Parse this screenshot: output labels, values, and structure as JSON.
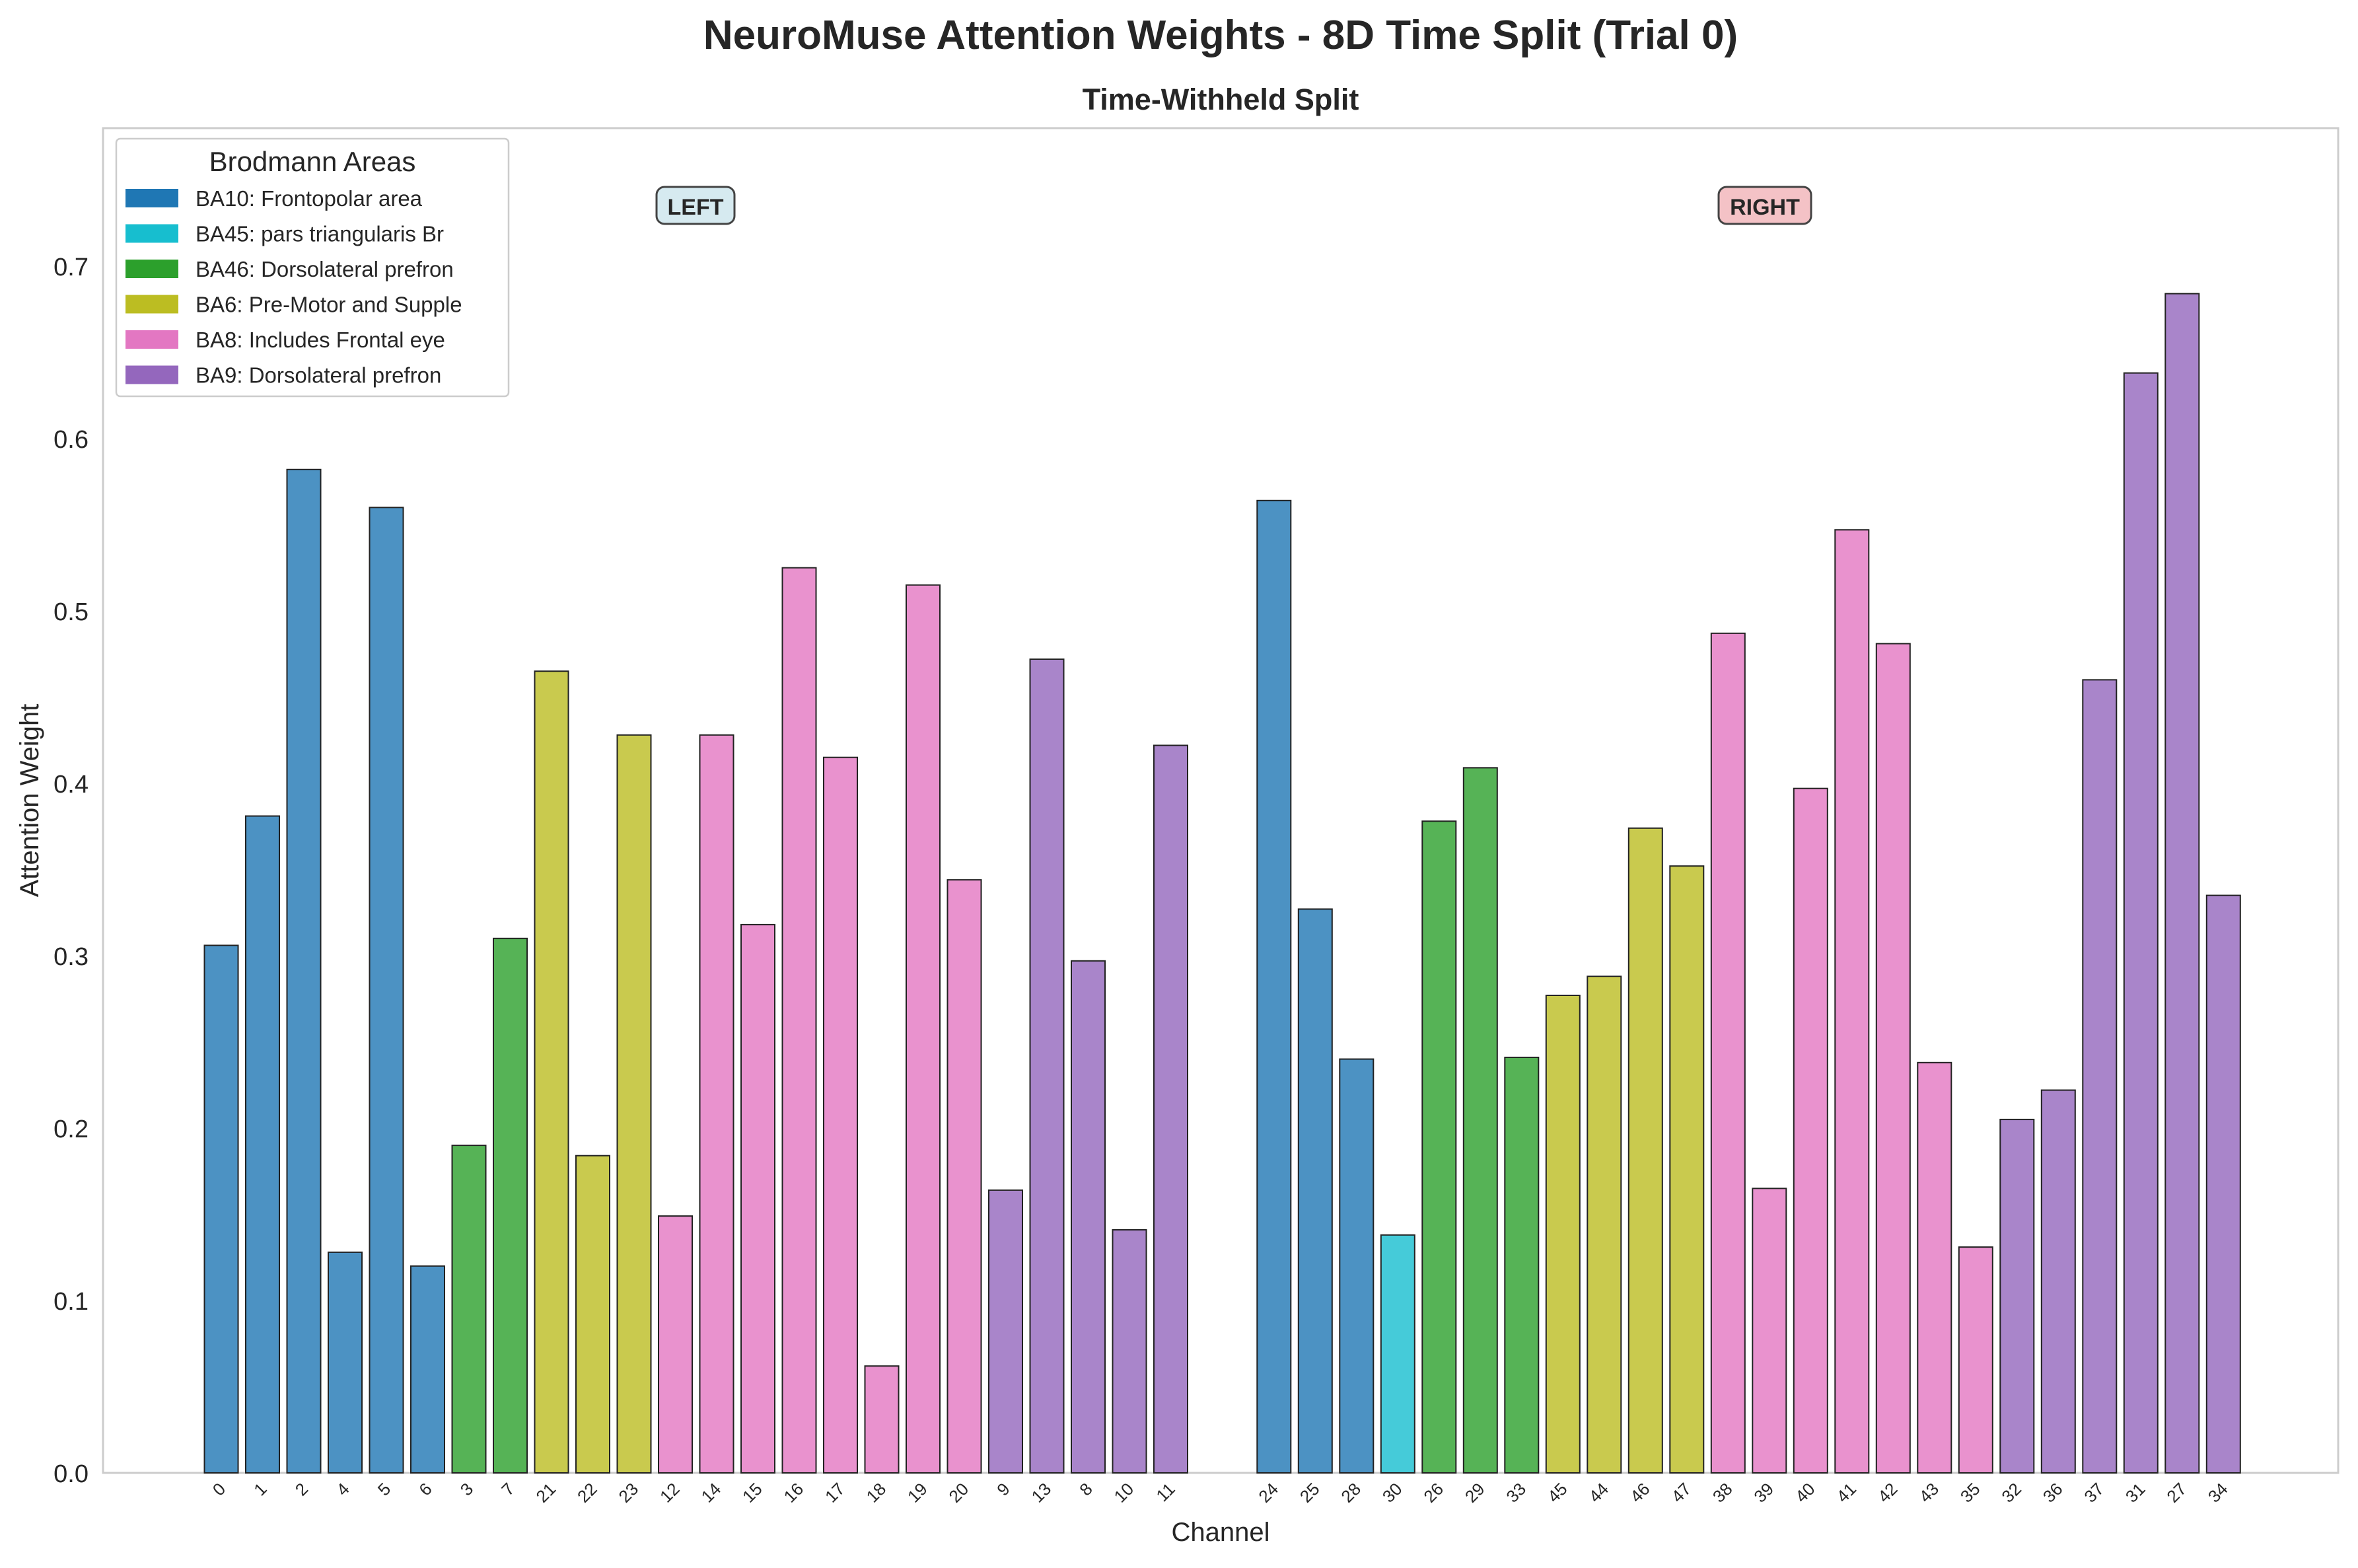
{
  "figure": {
    "title": "NeuroMuse Attention Weights - 8D Time Split (Trial 0)",
    "subtitle": "Time-Withheld Split",
    "xlabel": "Channel",
    "ylabel": "Attention Weight"
  },
  "annotations": {
    "left": "LEFT",
    "right": "RIGHT"
  },
  "legend": {
    "title": "Brodmann Areas",
    "items": [
      {
        "label": "BA10: Frontopolar area",
        "color": "#1f77b4"
      },
      {
        "label": "BA45: pars triangularis Br",
        "color": "#17becf"
      },
      {
        "label": "BA46: Dorsolateral prefron",
        "color": "#2ca02c"
      },
      {
        "label": "BA6: Pre-Motor and Supple",
        "color": "#bcbd22"
      },
      {
        "label": "BA8: Includes Frontal eye",
        "color": "#e377c2"
      },
      {
        "label": "BA9: Dorsolateral prefron",
        "color": "#9467bd"
      }
    ]
  },
  "chart_data": {
    "type": "bar",
    "title": "Time-Withheld Split",
    "xlabel": "Channel",
    "ylabel": "Attention Weight",
    "ylim": [
      0,
      0.78
    ],
    "yticks": [
      "0.0",
      "0.1",
      "0.2",
      "0.3",
      "0.4",
      "0.5",
      "0.6",
      "0.7"
    ],
    "grid": false,
    "legend_position": "top-left",
    "groups": [
      {
        "label": "LEFT",
        "bars": [
          {
            "channel": "0",
            "value": 0.306,
            "area": "BA10"
          },
          {
            "channel": "1",
            "value": 0.381,
            "area": "BA10"
          },
          {
            "channel": "2",
            "value": 0.582,
            "area": "BA10"
          },
          {
            "channel": "4",
            "value": 0.128,
            "area": "BA10"
          },
          {
            "channel": "5",
            "value": 0.56,
            "area": "BA10"
          },
          {
            "channel": "6",
            "value": 0.12,
            "area": "BA10"
          },
          {
            "channel": "3",
            "value": 0.19,
            "area": "BA46"
          },
          {
            "channel": "7",
            "value": 0.31,
            "area": "BA46"
          },
          {
            "channel": "21",
            "value": 0.465,
            "area": "BA6"
          },
          {
            "channel": "22",
            "value": 0.184,
            "area": "BA6"
          },
          {
            "channel": "23",
            "value": 0.428,
            "area": "BA6"
          },
          {
            "channel": "12",
            "value": 0.149,
            "area": "BA8"
          },
          {
            "channel": "14",
            "value": 0.428,
            "area": "BA8"
          },
          {
            "channel": "15",
            "value": 0.318,
            "area": "BA8"
          },
          {
            "channel": "16",
            "value": 0.525,
            "area": "BA8"
          },
          {
            "channel": "17",
            "value": 0.415,
            "area": "BA8"
          },
          {
            "channel": "18",
            "value": 0.062,
            "area": "BA8"
          },
          {
            "channel": "19",
            "value": 0.515,
            "area": "BA8"
          },
          {
            "channel": "20",
            "value": 0.344,
            "area": "BA8"
          },
          {
            "channel": "9",
            "value": 0.164,
            "area": "BA9"
          },
          {
            "channel": "13",
            "value": 0.472,
            "area": "BA9"
          },
          {
            "channel": "8",
            "value": 0.297,
            "area": "BA9"
          },
          {
            "channel": "10",
            "value": 0.141,
            "area": "BA9"
          },
          {
            "channel": "11",
            "value": 0.422,
            "area": "BA9"
          }
        ]
      },
      {
        "label": "RIGHT",
        "bars": [
          {
            "channel": "24",
            "value": 0.564,
            "area": "BA10"
          },
          {
            "channel": "25",
            "value": 0.327,
            "area": "BA10"
          },
          {
            "channel": "28",
            "value": 0.24,
            "area": "BA10"
          },
          {
            "channel": "30",
            "value": 0.138,
            "area": "BA45"
          },
          {
            "channel": "26",
            "value": 0.378,
            "area": "BA46"
          },
          {
            "channel": "29",
            "value": 0.409,
            "area": "BA46"
          },
          {
            "channel": "33",
            "value": 0.241,
            "area": "BA46"
          },
          {
            "channel": "45",
            "value": 0.277,
            "area": "BA6"
          },
          {
            "channel": "44",
            "value": 0.288,
            "area": "BA6"
          },
          {
            "channel": "46",
            "value": 0.374,
            "area": "BA6"
          },
          {
            "channel": "47",
            "value": 0.352,
            "area": "BA6"
          },
          {
            "channel": "38",
            "value": 0.487,
            "area": "BA8"
          },
          {
            "channel": "39",
            "value": 0.165,
            "area": "BA8"
          },
          {
            "channel": "40",
            "value": 0.397,
            "area": "BA8"
          },
          {
            "channel": "41",
            "value": 0.547,
            "area": "BA8"
          },
          {
            "channel": "42",
            "value": 0.481,
            "area": "BA8"
          },
          {
            "channel": "43",
            "value": 0.238,
            "area": "BA8"
          },
          {
            "channel": "35",
            "value": 0.131,
            "area": "BA8"
          },
          {
            "channel": "32",
            "value": 0.205,
            "area": "BA9"
          },
          {
            "channel": "36",
            "value": 0.222,
            "area": "BA9"
          },
          {
            "channel": "37",
            "value": 0.46,
            "area": "BA9"
          },
          {
            "channel": "31",
            "value": 0.638,
            "area": "BA9"
          },
          {
            "channel": "27",
            "value": 0.684,
            "area": "BA9"
          },
          {
            "channel": "34",
            "value": 0.335,
            "area": "BA9"
          }
        ]
      }
    ],
    "area_colors": {
      "BA10": "#1f77b4",
      "BA45": "#17becf",
      "BA46": "#2ca02c",
      "BA6": "#bcbd22",
      "BA8": "#e377c2",
      "BA9": "#9467bd"
    }
  }
}
